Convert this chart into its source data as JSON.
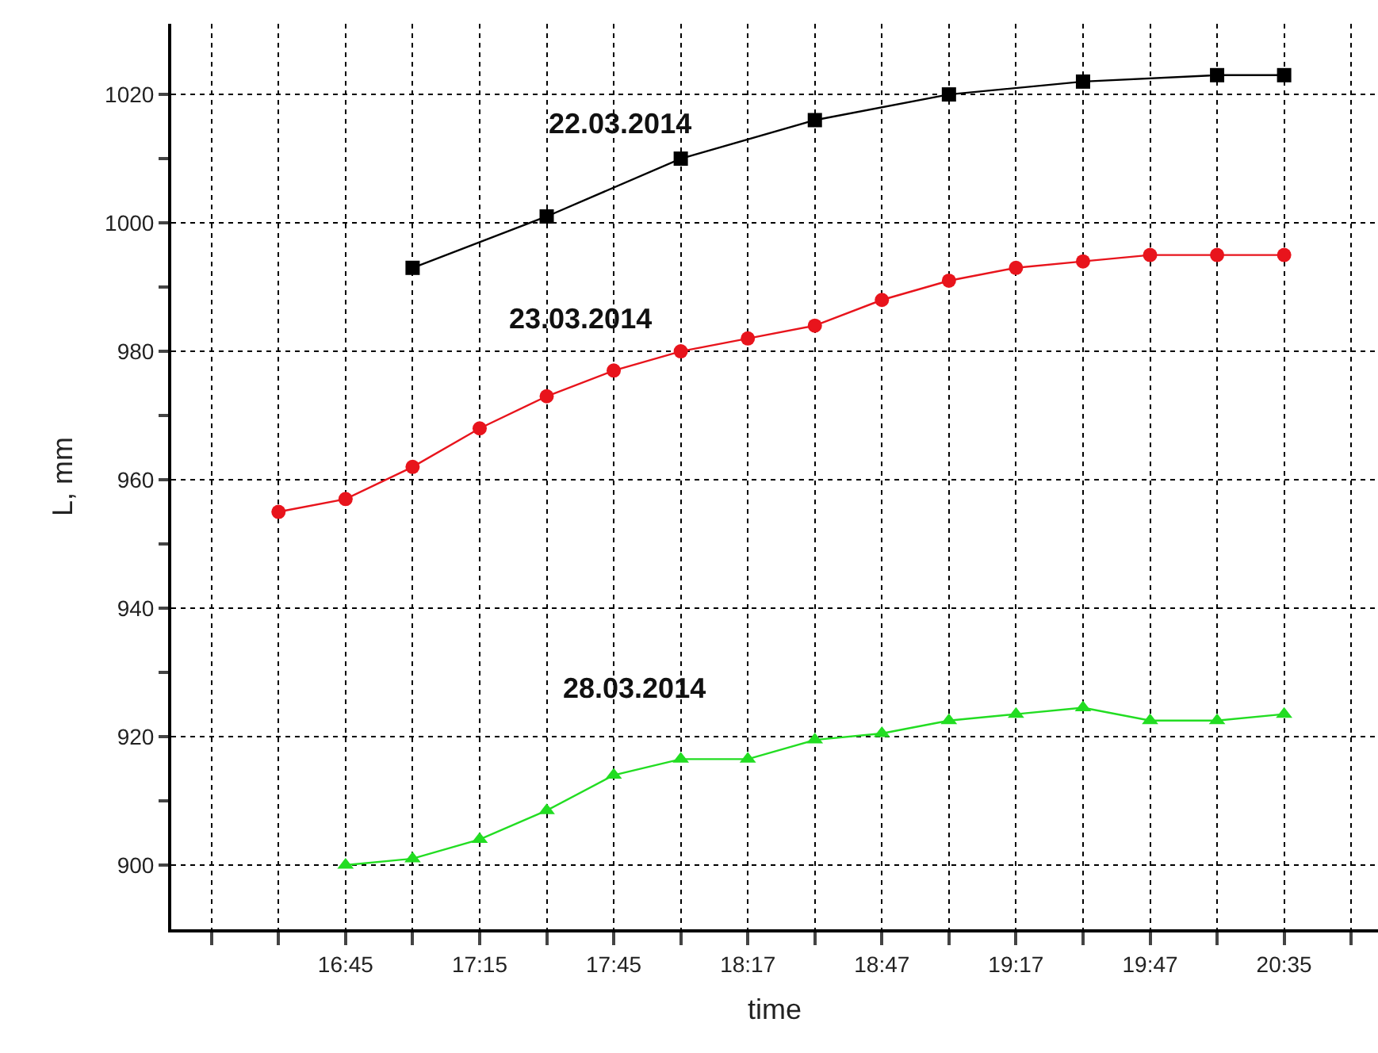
{
  "chart_data": {
    "type": "line",
    "xlabel": "time",
    "ylabel": "L, mm",
    "categories": [
      null,
      null,
      "16:45",
      null,
      "17:15",
      null,
      "17:45",
      null,
      "18:17",
      null,
      "18:47",
      null,
      "19:17",
      null,
      "19:47",
      null,
      "20:35",
      null
    ],
    "series": [
      {
        "name": "22.03.2014",
        "color": "#000000",
        "marker": "square",
        "values": [
          null,
          null,
          null,
          993,
          null,
          1001,
          null,
          1010,
          null,
          1016,
          null,
          1020,
          null,
          1022,
          null,
          1023,
          1023,
          null
        ]
      },
      {
        "name": "23.03.2014",
        "color": "#e8141c",
        "marker": "circle",
        "values": [
          null,
          955,
          957,
          962,
          968,
          973,
          977,
          980,
          982,
          984,
          988,
          991,
          993,
          994,
          995,
          995,
          995,
          null
        ]
      },
      {
        "name": "28.03.2014",
        "color": "#22dd22",
        "marker": "triangle",
        "values": [
          null,
          null,
          900,
          901,
          904,
          908.5,
          914,
          916.5,
          916.5,
          919.5,
          920.5,
          922.5,
          923.5,
          924.5,
          922.5,
          922.5,
          923.5,
          null
        ]
      }
    ],
    "ylim": [
      890,
      1031
    ],
    "yticks": [
      900,
      {
        "value": 910,
        "label": null
      },
      920,
      {
        "value": 930,
        "label": null
      },
      940,
      {
        "value": 950,
        "label": null
      },
      960,
      {
        "value": 970,
        "label": null
      },
      980,
      {
        "value": 990,
        "label": null
      },
      1000,
      {
        "value": 1010,
        "label": null
      },
      1020
    ],
    "grid": true,
    "legend": false,
    "line_style": "solid"
  }
}
